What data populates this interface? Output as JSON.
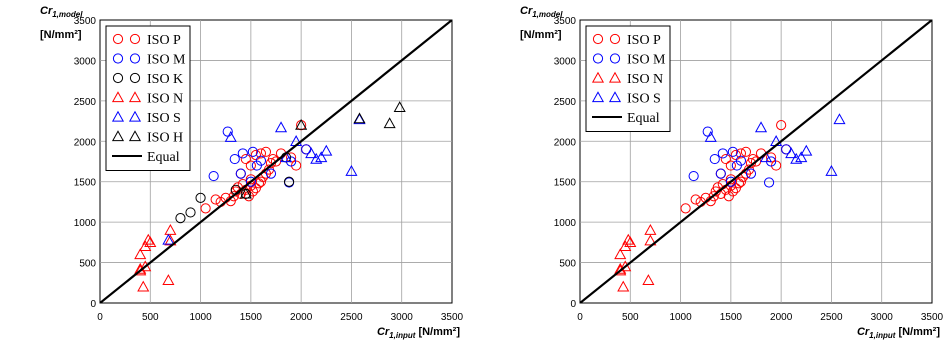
{
  "chart_data": [
    {
      "type": "scatter",
      "ylabel_main": "Cr",
      "ylabel_sub": "1,model",
      "ylabel_unit": "[N/mm²]",
      "xlabel_main": "Cr",
      "xlabel_sub": "1,input",
      "xlabel_unit": "[N/mm²]",
      "xlim": [
        0,
        3500
      ],
      "ylim": [
        0,
        3500
      ],
      "xticks": [
        "0",
        "500",
        "1000",
        "1500",
        "2000",
        "2500",
        "3000",
        "3500"
      ],
      "yticks": [
        "0",
        "500",
        "1000",
        "1500",
        "2000",
        "2500",
        "3000",
        "3500"
      ],
      "grid": true,
      "legend_position": "top-left",
      "series": [
        {
          "name": "ISO P",
          "color": "#ff0000",
          "marker": "circle",
          "points": [
            [
              1050,
              1170
            ],
            [
              1150,
              1280
            ],
            [
              1200,
              1250
            ],
            [
              1250,
              1300
            ],
            [
              1300,
              1260
            ],
            [
              1330,
              1320
            ],
            [
              1350,
              1380
            ],
            [
              1370,
              1430
            ],
            [
              1400,
              1350
            ],
            [
              1420,
              1470
            ],
            [
              1450,
              1400
            ],
            [
              1480,
              1320
            ],
            [
              1500,
              1450
            ],
            [
              1500,
              1530
            ],
            [
              1520,
              1380
            ],
            [
              1550,
              1420
            ],
            [
              1580,
              1480
            ],
            [
              1600,
              1500
            ],
            [
              1620,
              1560
            ],
            [
              1650,
              1600
            ],
            [
              1680,
              1650
            ],
            [
              1700,
              1730
            ],
            [
              1720,
              1780
            ],
            [
              1550,
              1830
            ],
            [
              1600,
              1850
            ],
            [
              1400,
              1600
            ],
            [
              1450,
              1780
            ],
            [
              1500,
              1700
            ],
            [
              1650,
              1870
            ],
            [
              1750,
              1750
            ],
            [
              1800,
              1850
            ],
            [
              1900,
              1800
            ],
            [
              1950,
              1700
            ],
            [
              2050,
              1900
            ],
            [
              2000,
              2200
            ]
          ]
        },
        {
          "name": "ISO M",
          "color": "#0000ff",
          "marker": "circle",
          "points": [
            [
              1130,
              1570
            ],
            [
              1270,
              2120
            ],
            [
              1340,
              1780
            ],
            [
              1400,
              1600
            ],
            [
              1420,
              1850
            ],
            [
              1500,
              1500
            ],
            [
              1520,
              1870
            ],
            [
              1560,
              1700
            ],
            [
              1600,
              1760
            ],
            [
              1700,
              1600
            ],
            [
              1880,
              1490
            ],
            [
              1900,
              1750
            ],
            [
              2050,
              1900
            ]
          ]
        },
        {
          "name": "ISO K",
          "color": "#000000",
          "marker": "circle",
          "points": [
            [
              1000,
              1300
            ],
            [
              800,
              1050
            ],
            [
              900,
              1120
            ],
            [
              1450,
              1350
            ],
            [
              1880,
              1500
            ],
            [
              1350,
              1400
            ],
            [
              1850,
              1800
            ]
          ]
        },
        {
          "name": "ISO N",
          "color": "#ff0000",
          "marker": "triangle",
          "points": [
            [
              400,
              400
            ],
            [
              450,
              450
            ],
            [
              500,
              750
            ],
            [
              450,
              700
            ],
            [
              400,
              600
            ],
            [
              480,
              780
            ],
            [
              700,
              900
            ],
            [
              700,
              770
            ],
            [
              430,
              200
            ],
            [
              680,
              280
            ],
            [
              400,
              420
            ]
          ]
        },
        {
          "name": "ISO S",
          "color": "#0000ff",
          "marker": "triangle",
          "points": [
            [
              680,
              780
            ],
            [
              1300,
              2050
            ],
            [
              1800,
              2170
            ],
            [
              1850,
              1800
            ],
            [
              1950,
              2000
            ],
            [
              2100,
              1850
            ],
            [
              2150,
              1780
            ],
            [
              2200,
              1800
            ],
            [
              2250,
              1880
            ],
            [
              2500,
              1630
            ],
            [
              2580,
              2270
            ]
          ]
        },
        {
          "name": "ISO H",
          "color": "#000000",
          "marker": "triangle",
          "points": [
            [
              2000,
              2200
            ],
            [
              2580,
              2280
            ],
            [
              2880,
              2220
            ],
            [
              2980,
              2420
            ],
            [
              1450,
              1350
            ]
          ]
        },
        {
          "name": "Equal",
          "color": "#000000",
          "marker": "line",
          "points": [
            [
              0,
              0
            ],
            [
              3500,
              3500
            ]
          ]
        }
      ]
    },
    {
      "type": "scatter",
      "ylabel_main": "Cr",
      "ylabel_sub": "1,model",
      "ylabel_unit": "[N/mm²]",
      "xlabel_main": "Cr",
      "xlabel_sub": "1,input",
      "xlabel_unit": "[N/mm²]",
      "xlim": [
        0,
        3500
      ],
      "ylim": [
        0,
        3500
      ],
      "xticks": [
        "0",
        "500",
        "1000",
        "1500",
        "2000",
        "2500",
        "3000",
        "3500"
      ],
      "yticks": [
        "0",
        "500",
        "1000",
        "1500",
        "2000",
        "2500",
        "3000",
        "3500"
      ],
      "grid": true,
      "legend_position": "top-left",
      "series": [
        {
          "name": "ISO P",
          "color": "#ff0000",
          "marker": "circle",
          "points": [
            [
              1050,
              1170
            ],
            [
              1150,
              1280
            ],
            [
              1200,
              1250
            ],
            [
              1250,
              1300
            ],
            [
              1300,
              1260
            ],
            [
              1330,
              1320
            ],
            [
              1350,
              1380
            ],
            [
              1370,
              1430
            ],
            [
              1400,
              1350
            ],
            [
              1420,
              1470
            ],
            [
              1450,
              1400
            ],
            [
              1480,
              1320
            ],
            [
              1500,
              1450
            ],
            [
              1500,
              1530
            ],
            [
              1520,
              1380
            ],
            [
              1550,
              1420
            ],
            [
              1580,
              1480
            ],
            [
              1600,
              1500
            ],
            [
              1620,
              1560
            ],
            [
              1650,
              1600
            ],
            [
              1680,
              1650
            ],
            [
              1700,
              1730
            ],
            [
              1720,
              1780
            ],
            [
              1550,
              1830
            ],
            [
              1600,
              1850
            ],
            [
              1400,
              1600
            ],
            [
              1450,
              1780
            ],
            [
              1500,
              1700
            ],
            [
              1650,
              1870
            ],
            [
              1750,
              1750
            ],
            [
              1800,
              1850
            ],
            [
              1900,
              1800
            ],
            [
              1950,
              1700
            ],
            [
              2050,
              1900
            ],
            [
              2000,
              2200
            ]
          ]
        },
        {
          "name": "ISO M",
          "color": "#0000ff",
          "marker": "circle",
          "points": [
            [
              1130,
              1570
            ],
            [
              1270,
              2120
            ],
            [
              1340,
              1780
            ],
            [
              1400,
              1600
            ],
            [
              1420,
              1850
            ],
            [
              1500,
              1500
            ],
            [
              1520,
              1870
            ],
            [
              1560,
              1700
            ],
            [
              1600,
              1760
            ],
            [
              1700,
              1600
            ],
            [
              1880,
              1490
            ],
            [
              1900,
              1750
            ],
            [
              2050,
              1900
            ]
          ]
        },
        {
          "name": "ISO N",
          "color": "#ff0000",
          "marker": "triangle",
          "points": [
            [
              400,
              400
            ],
            [
              450,
              450
            ],
            [
              500,
              750
            ],
            [
              450,
              700
            ],
            [
              400,
              600
            ],
            [
              480,
              780
            ],
            [
              700,
              900
            ],
            [
              700,
              770
            ],
            [
              430,
              200
            ],
            [
              680,
              280
            ],
            [
              400,
              420
            ]
          ]
        },
        {
          "name": "ISO S",
          "color": "#0000ff",
          "marker": "triangle",
          "points": [
            [
              1300,
              2050
            ],
            [
              1800,
              2170
            ],
            [
              1850,
              1800
            ],
            [
              1950,
              2000
            ],
            [
              2100,
              1850
            ],
            [
              2150,
              1780
            ],
            [
              2200,
              1800
            ],
            [
              2250,
              1880
            ],
            [
              2500,
              1630
            ],
            [
              2580,
              2270
            ]
          ]
        },
        {
          "name": "Equal",
          "color": "#000000",
          "marker": "line",
          "points": [
            [
              0,
              0
            ],
            [
              3500,
              3500
            ]
          ]
        }
      ]
    }
  ]
}
